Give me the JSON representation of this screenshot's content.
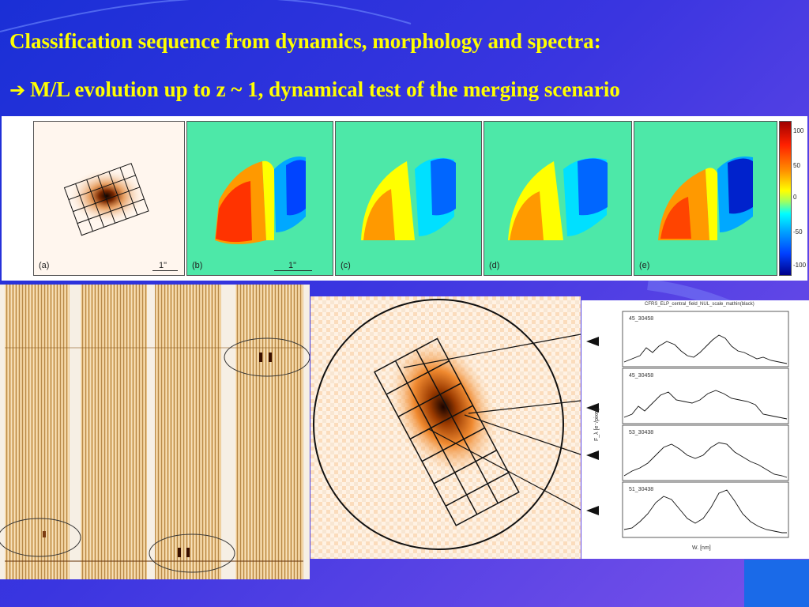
{
  "slide": {
    "title_line1": "Classification sequence from dynamics, morphology and spectra:",
    "title_line2_arrow": "➔",
    "title_line2": "M/L evolution up to z ~ 1, dynamical test of the merging scenario"
  },
  "velocity_panels": {
    "labels": [
      "(a)",
      "(b)",
      "(c)",
      "(d)",
      "(e)"
    ],
    "scale_label": "1\"",
    "colorbar_ticks": [
      "100",
      "50",
      "0",
      "-50",
      "-100"
    ]
  },
  "spectra_plot": {
    "header": "CFRS_ELP_central_field_NUL_scale_mathin(black)",
    "panel_tags": [
      "45_30458",
      "45_30458",
      "53_30438",
      "51_30438"
    ],
    "x_axis_label": "W. [nm]",
    "y_axis_label": "F_λ [e⁻/pixel]"
  },
  "colors": {
    "title": "#ffff00",
    "background_start": "#1a2fd6",
    "background_end": "#7a52ea"
  }
}
